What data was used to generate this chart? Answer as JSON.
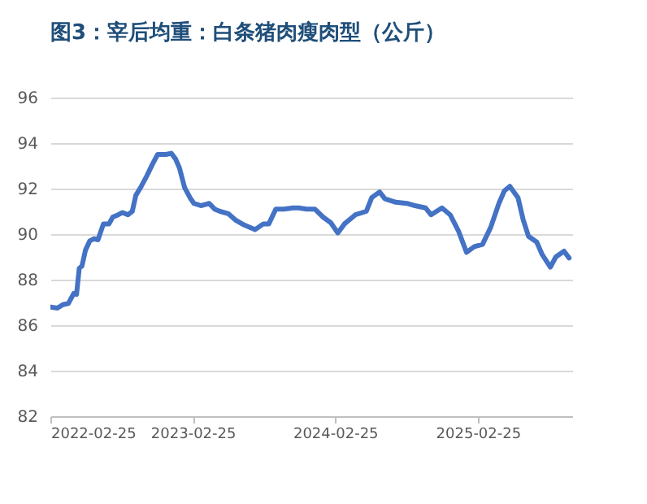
{
  "chart_data": {
    "type": "line",
    "title": "图3：宰后均重：白条猪肉瘦肉型（公斤）",
    "x": [
      "2022-02-25",
      "2022-03-15",
      "2022-03-29",
      "2022-04-12",
      "2022-04-26",
      "2022-05-03",
      "2022-05-10",
      "2022-05-17",
      "2022-05-26",
      "2022-06-06",
      "2022-06-17",
      "2022-06-27",
      "2022-07-11",
      "2022-07-25",
      "2022-08-04",
      "2022-08-18",
      "2022-08-29",
      "2022-09-12",
      "2022-09-23",
      "2022-10-02",
      "2022-10-16",
      "2022-10-30",
      "2022-11-13",
      "2022-11-27",
      "2022-12-18",
      "2023-01-01",
      "2023-01-12",
      "2023-01-22",
      "2023-02-04",
      "2023-02-18",
      "2023-02-28",
      "2023-03-18",
      "2023-04-08",
      "2023-04-22",
      "2023-05-06",
      "2023-05-27",
      "2023-06-16",
      "2023-07-07",
      "2023-08-04",
      "2023-08-25",
      "2023-09-08",
      "2023-09-26",
      "2023-10-17",
      "2023-11-09",
      "2023-11-23",
      "2023-12-14",
      "2024-01-04",
      "2024-01-25",
      "2024-02-14",
      "2024-03-03",
      "2024-03-20",
      "2024-04-17",
      "2024-05-15",
      "2024-05-29",
      "2024-06-18",
      "2024-07-02",
      "2024-07-30",
      "2024-08-27",
      "2024-09-17",
      "2024-10-14",
      "2024-10-28",
      "2024-11-25",
      "2024-12-16",
      "2025-01-06",
      "2025-01-27",
      "2025-02-16",
      "2025-03-09",
      "2025-03-30",
      "2025-04-20",
      "2025-05-04",
      "2025-05-18",
      "2025-06-08",
      "2025-06-21",
      "2025-07-05",
      "2025-07-26",
      "2025-08-09",
      "2025-08-30",
      "2025-09-13",
      "2025-10-04",
      "2025-10-17"
    ],
    "series": [
      {
        "color": "#4472c4",
        "values": [
          86.8,
          86.75,
          86.9,
          86.95,
          87.4,
          87.35,
          88.5,
          88.6,
          89.3,
          89.7,
          89.8,
          89.75,
          90.45,
          90.45,
          90.75,
          90.85,
          90.95,
          90.85,
          91.0,
          91.7,
          92.1,
          92.55,
          93.05,
          93.5,
          93.5,
          93.55,
          93.3,
          92.9,
          92.05,
          91.6,
          91.35,
          91.25,
          91.35,
          91.1,
          91.0,
          90.9,
          90.6,
          90.4,
          90.2,
          90.45,
          90.45,
          91.1,
          91.1,
          91.15,
          91.15,
          91.1,
          91.1,
          90.75,
          90.5,
          90.05,
          90.45,
          90.85,
          91.0,
          91.6,
          91.85,
          91.55,
          91.4,
          91.35,
          91.25,
          91.15,
          90.85,
          91.15,
          90.85,
          90.15,
          89.2,
          89.45,
          89.55,
          90.3,
          91.35,
          91.9,
          92.1,
          91.6,
          90.65,
          89.9,
          89.65,
          89.1,
          88.55,
          89.0,
          89.25,
          88.95
        ]
      }
    ],
    "xlim": [
      "2022-02-25",
      "2025-10-25"
    ],
    "xticks": [
      "2022-02-25",
      "2023-02-25",
      "2024-02-25",
      "2025-02-25"
    ],
    "ylim": [
      82,
      96
    ],
    "yticks": [
      82,
      84,
      86,
      88,
      90,
      92,
      94,
      96
    ],
    "grid": "y",
    "line_style": "solid",
    "marker": "none"
  }
}
